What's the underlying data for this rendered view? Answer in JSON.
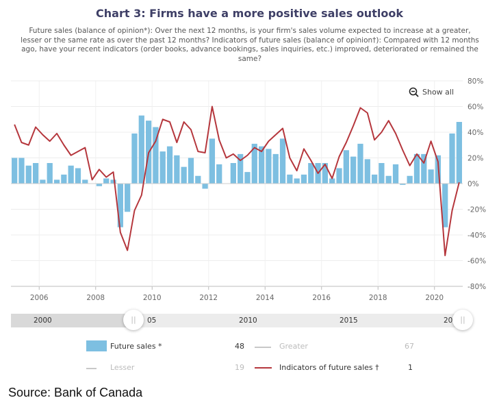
{
  "title": "Chart 3: Firms have a more positive sales outlook",
  "subtitle": "Future sales (balance of opinion*): Over the next 12 months, is your firm's sales volume expected to increase at a greater, lesser or the same rate as over the past 12 months? Indicators of future sales (balance of opinion†): Compared with 12 months ago, have your recent indicators (order books, advance bookings, sales inquiries, etc.) improved, deteriorated or remained the same?",
  "show_all_label": "Show all",
  "navigator": {
    "labels": [
      "2000",
      "05",
      "2010",
      "2015",
      "20"
    ]
  },
  "legend": [
    {
      "name": "Future sales *",
      "value": "48",
      "color": "#7dbfe1",
      "active": true
    },
    {
      "name": "Greater",
      "value": "67",
      "color": "#c8c8c8",
      "active": false
    },
    {
      "name": "Lesser",
      "value": "19",
      "color": "#c8c8c8",
      "active": false
    },
    {
      "name": "Indicators of future sales †",
      "value": "1",
      "color": "#b5363c",
      "active": true
    }
  ],
  "source": "Source: Bank of Canada",
  "chart_data": {
    "type": "bar+line",
    "ylim": [
      -80,
      80
    ],
    "y_ticks": [
      "80%",
      "60%",
      "40%",
      "20%",
      "0%",
      "-20%",
      "-40%",
      "-60%",
      "-80%"
    ],
    "y_axis_position": "right",
    "x_ticks": [
      "2006",
      "2008",
      "2010",
      "2012",
      "2014",
      "2016",
      "2018",
      "2020"
    ],
    "grid": true,
    "categories": [
      "2005Q1",
      "2005Q2",
      "2005Q3",
      "2005Q4",
      "2006Q1",
      "2006Q2",
      "2006Q3",
      "2006Q4",
      "2007Q1",
      "2007Q2",
      "2007Q3",
      "2007Q4",
      "2008Q1",
      "2008Q2",
      "2008Q3",
      "2008Q4",
      "2009Q1",
      "2009Q2",
      "2009Q3",
      "2009Q4",
      "2010Q1",
      "2010Q2",
      "2010Q3",
      "2010Q4",
      "2011Q1",
      "2011Q2",
      "2011Q3",
      "2011Q4",
      "2012Q1",
      "2012Q2",
      "2012Q3",
      "2012Q4",
      "2013Q1",
      "2013Q2",
      "2013Q3",
      "2013Q4",
      "2014Q1",
      "2014Q2",
      "2014Q3",
      "2014Q4",
      "2015Q1",
      "2015Q2",
      "2015Q3",
      "2015Q4",
      "2016Q1",
      "2016Q2",
      "2016Q3",
      "2016Q4",
      "2017Q1",
      "2017Q2",
      "2017Q3",
      "2017Q4",
      "2018Q1",
      "2018Q2",
      "2018Q3",
      "2018Q4",
      "2019Q1",
      "2019Q2",
      "2019Q3",
      "2019Q4",
      "2020Q1",
      "2020Q2",
      "2020Q3",
      "2020Q4"
    ],
    "series": [
      {
        "name": "Future sales *",
        "type": "bar",
        "color": "#7dbfe1",
        "values": [
          20,
          20,
          14,
          16,
          3,
          16,
          3,
          7,
          14,
          12,
          3,
          0,
          -2,
          4,
          3,
          -34,
          -22,
          39,
          53,
          49,
          44,
          25,
          29,
          22,
          13,
          20,
          6,
          -4,
          35,
          15,
          0,
          16,
          23,
          9,
          31,
          29,
          27,
          23,
          35,
          7,
          4,
          7,
          16,
          16,
          16,
          4,
          12,
          26,
          21,
          31,
          19,
          7,
          16,
          6,
          15,
          -1,
          6,
          23,
          23,
          11,
          22,
          -34,
          39,
          48
        ]
      },
      {
        "name": "Indicators of future sales †",
        "type": "line",
        "color": "#b5363c",
        "values": [
          46,
          32,
          30,
          44,
          38,
          33,
          39,
          30,
          22,
          25,
          28,
          3,
          11,
          5,
          9,
          -38,
          -52,
          -21,
          -9,
          24,
          33,
          50,
          48,
          32,
          48,
          42,
          25,
          24,
          60,
          34,
          20,
          23,
          18,
          22,
          28,
          25,
          33,
          38,
          43,
          20,
          10,
          27,
          18,
          8,
          15,
          4,
          21,
          32,
          45,
          59,
          55,
          34,
          40,
          49,
          39,
          26,
          14,
          23,
          16,
          33,
          17,
          -56,
          -21,
          1
        ]
      }
    ]
  }
}
